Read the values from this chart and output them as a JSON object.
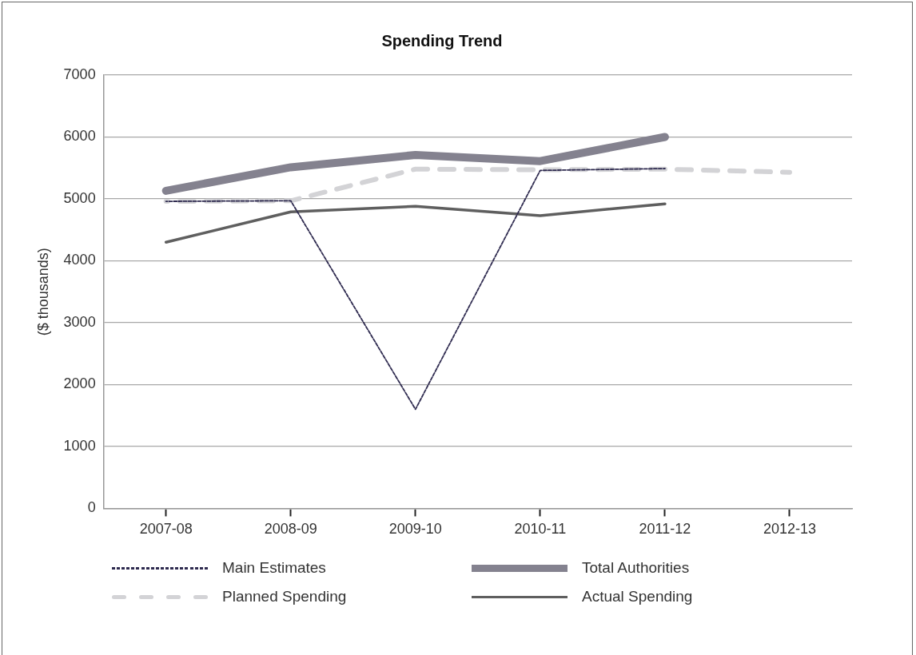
{
  "chart_data": {
    "type": "line",
    "title": "Spending Trend",
    "ylabel": "($ thousands)",
    "categories": [
      "2007-08",
      "2008-09",
      "2009-10",
      "2010-11",
      "2011-12",
      "2012-13"
    ],
    "ylim": [
      0,
      7000
    ],
    "yticks": [
      0,
      1000,
      2000,
      3000,
      4000,
      5000,
      6000,
      7000
    ],
    "grid": "y",
    "legend": "bottom",
    "marker": "none",
    "series": [
      {
        "name": "Main Estimates",
        "color": "#2e2a4f",
        "line_style": "dashed",
        "values": [
          4960,
          4970,
          1600,
          5460,
          5490,
          null
        ]
      },
      {
        "name": "Total Authorities",
        "color": "#84828f",
        "line_style": "solid",
        "values": [
          5130,
          5510,
          5710,
          5610,
          6000,
          null
        ]
      },
      {
        "name": "Planned Spending",
        "color": "#d3d3d6",
        "line_style": "dashed",
        "values": [
          4960,
          4970,
          5480,
          5470,
          5480,
          5430
        ]
      },
      {
        "name": "Actual Spending",
        "color": "#5f5f5f",
        "line_style": "solid",
        "values": [
          4300,
          4790,
          4880,
          4730,
          4920,
          null
        ]
      }
    ]
  }
}
